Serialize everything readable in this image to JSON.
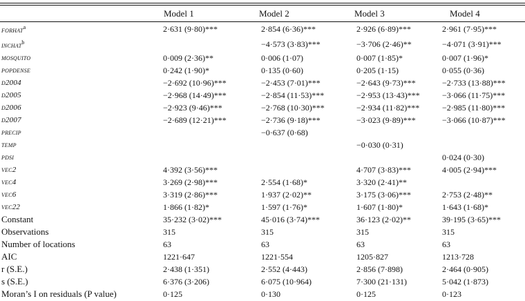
{
  "headers": [
    "",
    "Model 1",
    "Model 2",
    "Model 3",
    "Model 4"
  ],
  "rows": [
    {
      "label": "FORHAT",
      "sup": "a",
      "style": "var",
      "cells": [
        "2·631 (9·80)***",
        "2·854 (6·36)***",
        "2·926 (6·89)***",
        "2·961 (7·95)***"
      ]
    },
    {
      "label": "INCHAT",
      "sup": "b",
      "style": "var",
      "cells": [
        "",
        "−4·573 (3·83)***",
        "−3·706 (2·46)**",
        "−4·071 (3·91)***"
      ]
    },
    {
      "label": "MOSQUITO",
      "sup": "",
      "style": "var",
      "cells": [
        "0·009 (2·36)**",
        "0·006 (1·07)",
        "0·007 (1·85)*",
        "0·007 (1·96)*"
      ]
    },
    {
      "label": "POPDENSE",
      "sup": "",
      "style": "var",
      "cells": [
        "0·242 (1·90)*",
        "0·135 (0·60)",
        "0·205 (1·15)",
        "0·055 (0·36)"
      ]
    },
    {
      "label": "D2004",
      "sup": "",
      "style": "var",
      "cells": [
        "−2·692 (10·96)***",
        "−2·453 (7·01)***",
        "−2·643 (9·73)***",
        "−2·733 (13·88)***"
      ]
    },
    {
      "label": "D2005",
      "sup": "",
      "style": "var",
      "cells": [
        "−2·968 (14·49)***",
        "−2·854 (11·53)***",
        "−2·953 (13·43)***",
        "−3·066 (11·75)***"
      ]
    },
    {
      "label": "D2006",
      "sup": "",
      "style": "var",
      "cells": [
        "−2·923 (9·46)***",
        "−2·768 (10·30)***",
        "−2·934 (11·82)***",
        "−2·985 (11·80)***"
      ]
    },
    {
      "label": "D2007",
      "sup": "",
      "style": "var",
      "cells": [
        "−2·689 (12·21)***",
        "−2·736 (9·18)***",
        "−3·023 (9·89)***",
        "−3·066 (10·87)***"
      ]
    },
    {
      "label": "PRECIP",
      "sup": "",
      "style": "var",
      "cells": [
        "",
        "−0·637 (0·68)",
        "",
        ""
      ]
    },
    {
      "label": "TEMP",
      "sup": "",
      "style": "var",
      "cells": [
        "",
        "",
        "−0·030 (0·31)",
        ""
      ]
    },
    {
      "label": "PDSI",
      "sup": "",
      "style": "var",
      "cells": [
        "",
        "",
        "",
        "0·024 (0·30)"
      ]
    },
    {
      "label": "VEC2",
      "sup": "",
      "style": "var",
      "cells": [
        "4·392 (3·56)***",
        "",
        "4·707 (3·83)***",
        "4·005 (2·94)***"
      ]
    },
    {
      "label": "VEC4",
      "sup": "",
      "style": "var",
      "cells": [
        "3·269 (2·98)***",
        "2·554 (1·68)*",
        "3·320 (2·41)**",
        ""
      ]
    },
    {
      "label": "VEC6",
      "sup": "",
      "style": "var",
      "cells": [
        "3·319 (2·86)***",
        "1·937 (2·02)**",
        "3·175 (3·06)***",
        "2·753 (2·48)**"
      ]
    },
    {
      "label": "VEC22",
      "sup": "",
      "style": "var",
      "cells": [
        "1·866 (1·82)*",
        "1·597 (1·76)*",
        "1·607 (1·80)*",
        "1·643 (1·68)*"
      ]
    },
    {
      "label": "Constant",
      "sup": "",
      "style": "plain",
      "cells": [
        "35·232 (3·02)***",
        "45·016 (3·74)***",
        "36·123 (2·02)**",
        "39·195 (3·65)***"
      ]
    },
    {
      "label": "Observations",
      "sup": "",
      "style": "plain",
      "cells": [
        "315",
        "315",
        "315",
        "315"
      ]
    },
    {
      "label": "Number of locations",
      "sup": "",
      "style": "plain",
      "cells": [
        "63",
        "63",
        "63",
        "63"
      ]
    },
    {
      "label": "AIC",
      "sup": "",
      "style": "plain",
      "cells": [
        "1221·647",
        "1221·554",
        "1205·827",
        "1213·728"
      ]
    },
    {
      "label": "r (S.E.)",
      "sup": "",
      "style": "plain",
      "cells": [
        "2·438 (1·351)",
        "2·552 (4·443)",
        "2·856 (7·898)",
        "2·464 (0·905)"
      ]
    },
    {
      "label": "s (S.E.)",
      "sup": "",
      "style": "plain",
      "cells": [
        "6·376 (3·206)",
        "6·075 (10·964)",
        "7·300 (21·131)",
        "5·042 (1·873)"
      ]
    },
    {
      "label": "Moran’s I on residuals (P value)",
      "sup": "",
      "style": "plain",
      "cells": [
        "0·125",
        "0·130",
        "0·125",
        "0·123"
      ]
    }
  ]
}
